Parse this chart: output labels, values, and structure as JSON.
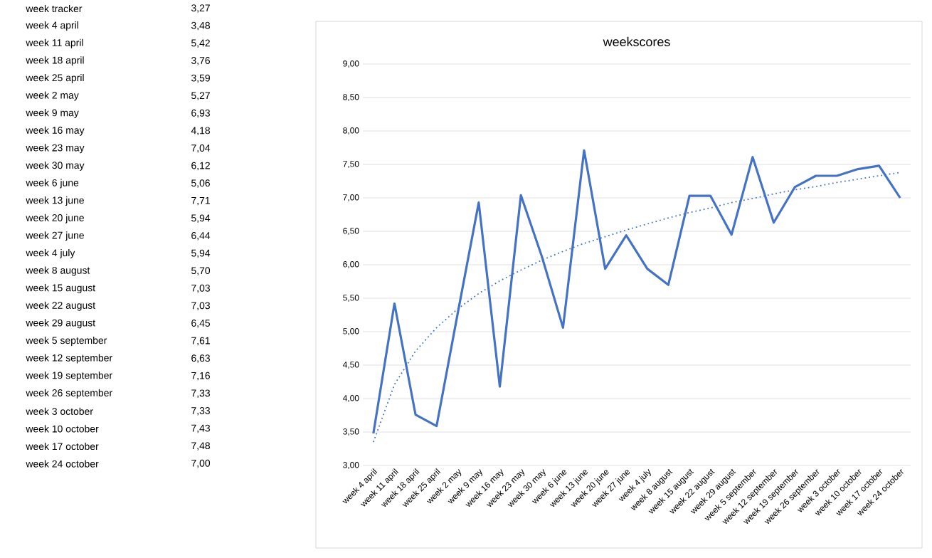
{
  "chart_data": {
    "type": "line",
    "title": "weekscores",
    "categories": [
      "week 4 april",
      "week 11 april",
      "week 18 april",
      "week 25 april",
      "week 2 may",
      "week 9 may",
      "week 16 may",
      "week 23 may",
      "week 30 may",
      "week 6 june",
      "week 13 june",
      "week 20 june",
      "week 27 june",
      "week 4 july",
      "week 8 august",
      "week 15 august",
      "week 22 august",
      "week 29 august",
      "week 5 september",
      "week 12 september",
      "week 19 september",
      "week 26 september",
      "week 3 october",
      "week 10 october",
      "week 17 october",
      "week 24 october"
    ],
    "series": [
      {
        "color": "#4472c4",
        "line_style": "solid",
        "values": [
          3.48,
          5.42,
          3.76,
          3.59,
          5.27,
          6.93,
          4.18,
          7.04,
          6.12,
          5.06,
          7.71,
          5.94,
          6.44,
          5.94,
          5.7,
          7.03,
          7.03,
          6.45,
          7.61,
          6.63,
          7.16,
          7.33,
          7.33,
          7.43,
          7.48,
          7.0
        ]
      },
      {
        "type": "line",
        "color": "#4472c4",
        "line_style": "dotted",
        "values": [
          3.35,
          4.21,
          4.71,
          5.06,
          5.34,
          5.57,
          5.76,
          5.92,
          6.07,
          6.2,
          6.32,
          6.42,
          6.52,
          6.61,
          6.7,
          6.78,
          6.85,
          6.93,
          6.99,
          7.06,
          7.12,
          7.17,
          7.23,
          7.28,
          7.33,
          7.38
        ]
      }
    ],
    "ylim": [
      3,
      9
    ],
    "yticks": [
      {
        "value": 3,
        "label": "3,00"
      },
      {
        "value": 3.5,
        "label": "3,50"
      },
      {
        "value": 4,
        "label": "4,00"
      },
      {
        "value": 4.5,
        "label": "4,50"
      },
      {
        "value": 5,
        "label": "5,00"
      },
      {
        "value": 5.5,
        "label": "5,50"
      },
      {
        "value": 6,
        "label": "6,00"
      },
      {
        "value": 6.5,
        "label": "6,50"
      },
      {
        "value": 7,
        "label": "7,00"
      },
      {
        "value": 7.5,
        "label": "7,50"
      },
      {
        "value": 8,
        "label": "8,00"
      },
      {
        "value": 8.5,
        "label": "8,50"
      },
      {
        "value": 9,
        "label": "9,00"
      }
    ],
    "grid": "y",
    "marker": "none",
    "annotations": [
      "week tracker",
      "3,27",
      "week 4 april",
      "3,48",
      "week 11 april",
      "5,42",
      "week 18 april",
      "3,76",
      "week 25 april",
      "3,59",
      "week 2 may",
      "5,27",
      "week 9 may",
      "6,93",
      "week 16 may",
      "4,18",
      "week 23 may",
      "7,04",
      "week 30 may",
      "6,12",
      "week 6 june",
      "5,06",
      "week 13 june",
      "7,71",
      "week 20 june",
      "5,94",
      "week 27 june",
      "6,44",
      "week 4 july",
      "5,94",
      "week 8 august",
      "5,70",
      "week 15 august",
      "7,03",
      "week 22 august",
      "7,03",
      "week 29 august",
      "6,45",
      "week 5 september",
      "7,61",
      "week 12 september",
      "6,63",
      "week 19 september",
      "7,16",
      "week 26 september",
      "7,33",
      "week 3 october",
      "7,33",
      "week 10 october",
      "7,43",
      "week 17 october",
      "7,48",
      "week 24 october",
      "7,00"
    ]
  }
}
